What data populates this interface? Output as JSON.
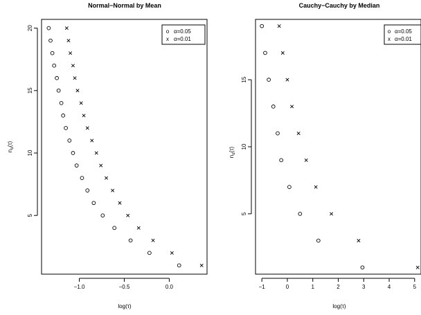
{
  "chart_data": [
    {
      "type": "scatter",
      "title": "Normal−Normal by Mean",
      "xlabel": "log(τ)",
      "ylabel": {
        "main": "n",
        "sub": "α",
        "tail": "(τ)"
      },
      "xlim": [
        -1.42,
        0.42
      ],
      "ylim": [
        0.3,
        20.7
      ],
      "xticks": [
        {
          "value": -1.0,
          "label": "−1.0"
        },
        {
          "value": -0.5,
          "label": "−0.5"
        },
        {
          "value": 0.0,
          "label": "0.0"
        }
      ],
      "yticks": [
        {
          "value": 5,
          "label": "5"
        },
        {
          "value": 10,
          "label": "10"
        },
        {
          "value": 15,
          "label": "15"
        },
        {
          "value": 20,
          "label": "20"
        }
      ],
      "grid": false,
      "legend_position": "top-right",
      "series": [
        {
          "name": "α=0.05",
          "marker": "o",
          "points": [
            [
              -1.34,
              20
            ],
            [
              -1.32,
              19
            ],
            [
              -1.3,
              18
            ],
            [
              -1.28,
              17
            ],
            [
              -1.25,
              16
            ],
            [
              -1.23,
              15
            ],
            [
              -1.2,
              14
            ],
            [
              -1.18,
              13
            ],
            [
              -1.15,
              12
            ],
            [
              -1.11,
              11
            ],
            [
              -1.07,
              10
            ],
            [
              -1.03,
              9
            ],
            [
              -0.97,
              8
            ],
            [
              -0.91,
              7
            ],
            [
              -0.84,
              6
            ],
            [
              -0.74,
              5
            ],
            [
              -0.61,
              4
            ],
            [
              -0.43,
              3
            ],
            [
              -0.22,
              2
            ],
            [
              0.11,
              1
            ]
          ]
        },
        {
          "name": "α=0.01",
          "marker": "x",
          "points": [
            [
              -1.14,
              20
            ],
            [
              -1.12,
              19
            ],
            [
              -1.1,
              18
            ],
            [
              -1.07,
              17
            ],
            [
              -1.05,
              16
            ],
            [
              -1.02,
              15
            ],
            [
              -0.98,
              14
            ],
            [
              -0.95,
              13
            ],
            [
              -0.91,
              12
            ],
            [
              -0.86,
              11
            ],
            [
              -0.81,
              10
            ],
            [
              -0.76,
              9
            ],
            [
              -0.7,
              8
            ],
            [
              -0.63,
              7
            ],
            [
              -0.55,
              6
            ],
            [
              -0.46,
              5
            ],
            [
              -0.34,
              4
            ],
            [
              -0.18,
              3
            ],
            [
              0.03,
              2
            ],
            [
              0.36,
              1
            ]
          ]
        }
      ]
    },
    {
      "type": "scatter",
      "title": "Cauchy−Cauchy by Median",
      "xlabel": "log(τ)",
      "ylabel": {
        "main": "n",
        "sub": "α",
        "tail": "(τ)"
      },
      "xlim": [
        -1.25,
        5.25
      ],
      "ylim": [
        0.5,
        19.5
      ],
      "xticks": [
        {
          "value": -1,
          "label": "−1"
        },
        {
          "value": 0,
          "label": "0"
        },
        {
          "value": 1,
          "label": "1"
        },
        {
          "value": 2,
          "label": "2"
        },
        {
          "value": 3,
          "label": "3"
        },
        {
          "value": 4,
          "label": "4"
        },
        {
          "value": 5,
          "label": "5"
        }
      ],
      "yticks": [
        {
          "value": 5,
          "label": "5"
        },
        {
          "value": 10,
          "label": "10"
        },
        {
          "value": 15,
          "label": "15"
        }
      ],
      "grid": false,
      "legend_position": "top-right",
      "series": [
        {
          "name": "α=0.05",
          "marker": "o",
          "points": [
            [
              -1.0,
              19
            ],
            [
              -0.87,
              17
            ],
            [
              -0.73,
              15
            ],
            [
              -0.55,
              13
            ],
            [
              -0.38,
              11
            ],
            [
              -0.24,
              9
            ],
            [
              0.08,
              7
            ],
            [
              0.5,
              5
            ],
            [
              1.22,
              3
            ],
            [
              2.95,
              1
            ]
          ]
        },
        {
          "name": "α=0.01",
          "marker": "x",
          "points": [
            [
              -0.32,
              19
            ],
            [
              -0.18,
              17
            ],
            [
              0.0,
              15
            ],
            [
              0.18,
              13
            ],
            [
              0.44,
              11
            ],
            [
              0.74,
              9
            ],
            [
              1.12,
              7
            ],
            [
              1.73,
              5
            ],
            [
              2.8,
              3
            ],
            [
              5.12,
              1
            ]
          ]
        }
      ]
    }
  ]
}
